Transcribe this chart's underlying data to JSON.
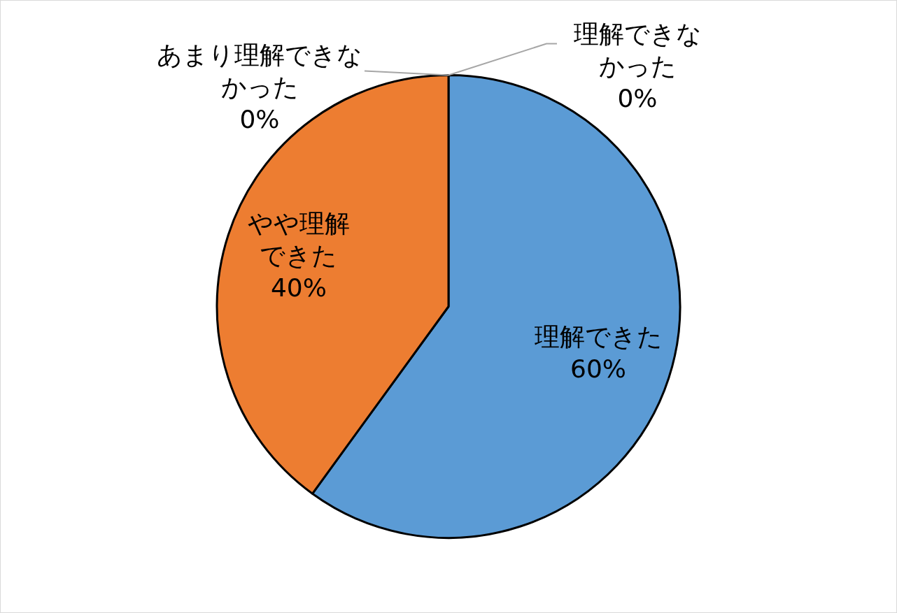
{
  "chart_data": {
    "type": "pie",
    "categories": [
      "理解できた",
      "やや理解できた",
      "あまり理解できなかった",
      "理解できなかった"
    ],
    "values": [
      60,
      40,
      0,
      0
    ],
    "colors": [
      "#5b9bd5",
      "#ed7d31",
      "#a5a5a5",
      "#ffc000"
    ],
    "value_labels": [
      "60%",
      "40%",
      "0%",
      "0%"
    ]
  }
}
